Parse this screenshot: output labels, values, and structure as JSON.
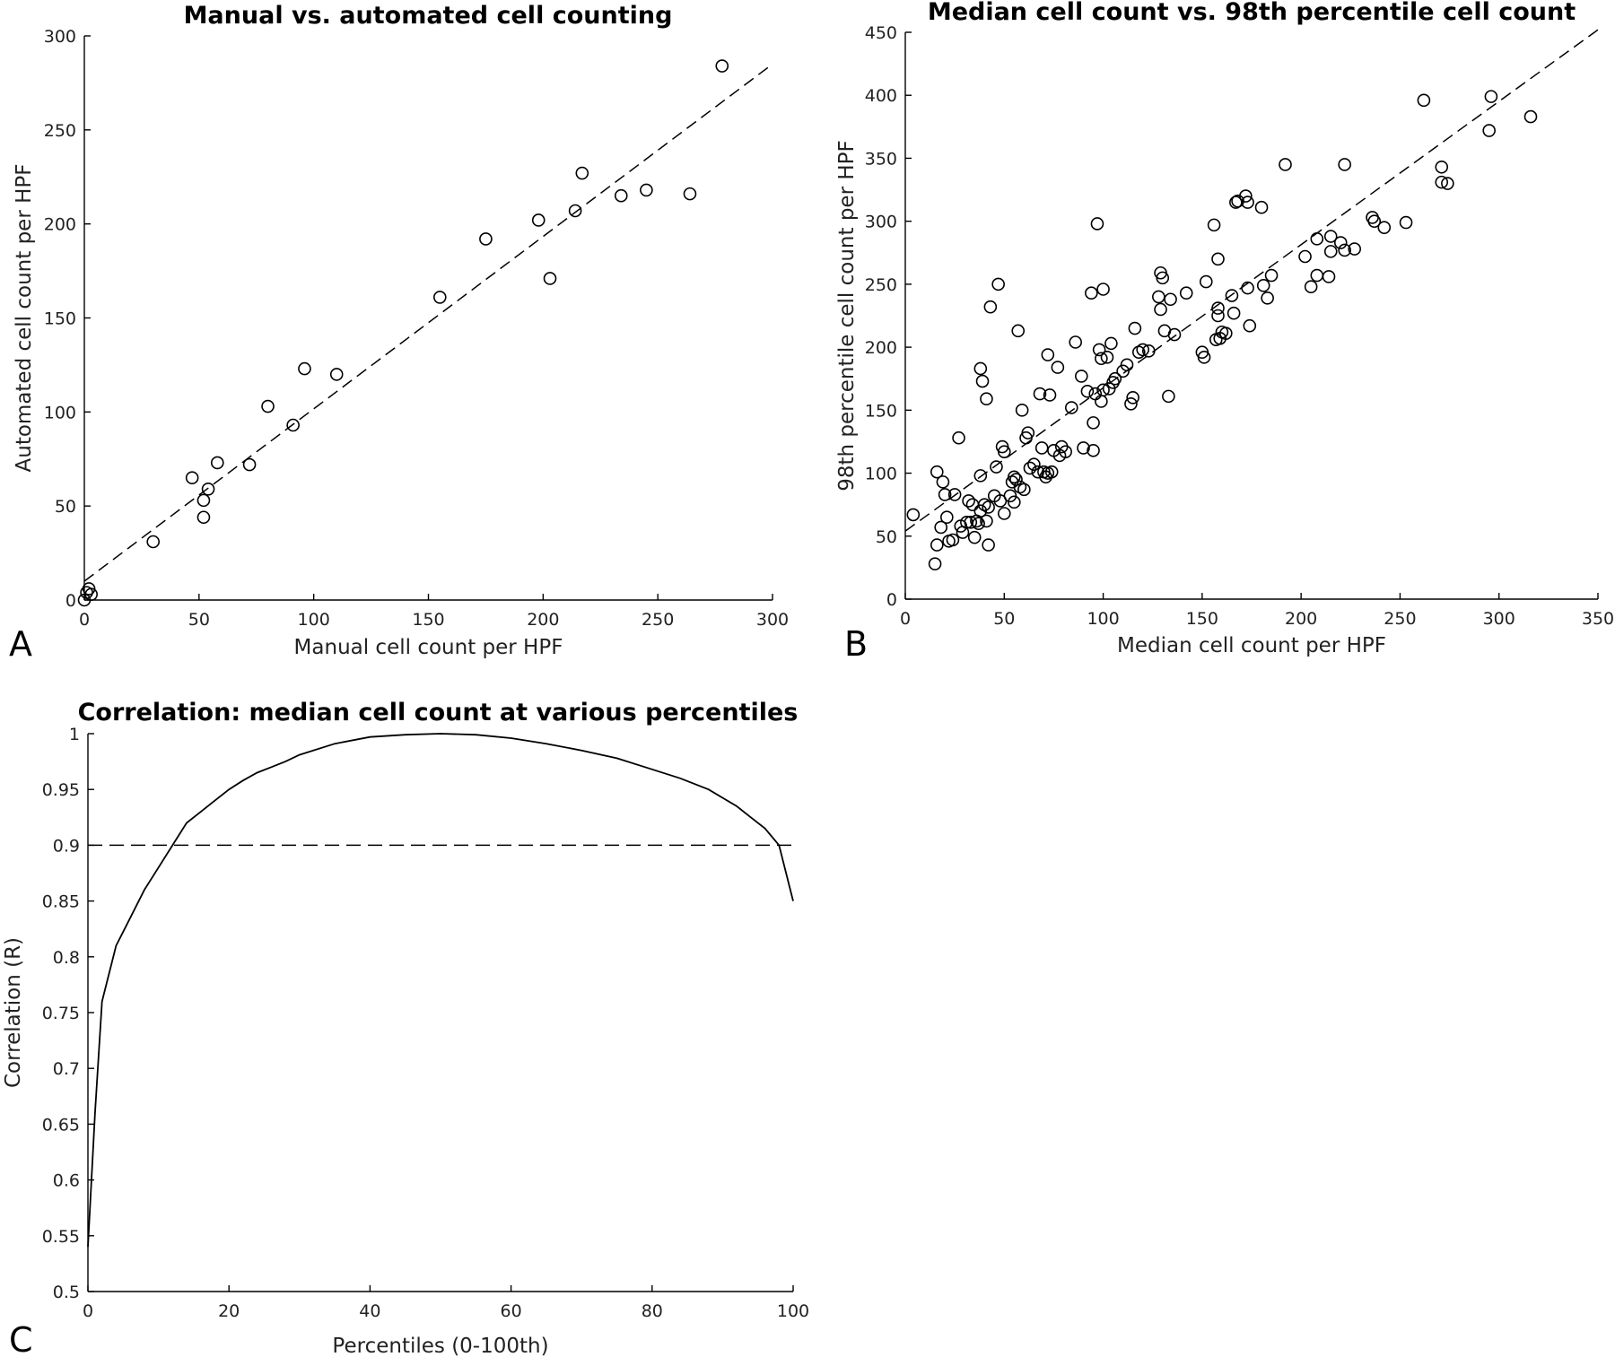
{
  "chart_data": [
    {
      "id": "A",
      "type": "scatter",
      "panel_label": "A",
      "title": "Manual vs. automated cell counting",
      "xlabel": "Manual cell count per HPF",
      "ylabel": "Automated cell count per HPF",
      "xlim": [
        0,
        300
      ],
      "ylim": [
        0,
        300
      ],
      "xticks": [
        0,
        50,
        100,
        150,
        200,
        250,
        300
      ],
      "yticks": [
        0,
        50,
        100,
        150,
        200,
        250,
        300
      ],
      "points": [
        [
          0,
          0
        ],
        [
          1,
          4
        ],
        [
          2,
          6
        ],
        [
          3,
          3
        ],
        [
          30,
          31
        ],
        [
          47,
          65
        ],
        [
          52,
          53
        ],
        [
          52,
          44
        ],
        [
          54,
          59
        ],
        [
          58,
          73
        ],
        [
          72,
          72
        ],
        [
          80,
          103
        ],
        [
          91,
          93
        ],
        [
          96,
          123
        ],
        [
          110,
          120
        ],
        [
          155,
          161
        ],
        [
          175,
          192
        ],
        [
          198,
          202
        ],
        [
          203,
          171
        ],
        [
          214,
          207
        ],
        [
          217,
          227
        ],
        [
          234,
          215
        ],
        [
          245,
          218
        ],
        [
          264,
          216
        ],
        [
          278,
          284
        ]
      ],
      "fit_line": {
        "style": "dashed",
        "from": [
          0,
          10
        ],
        "to": [
          300,
          285
        ]
      }
    },
    {
      "id": "B",
      "type": "scatter",
      "panel_label": "B",
      "title": "Median cell count vs. 98th percentile cell count",
      "xlabel": "Median cell count per HPF",
      "ylabel": "98th percentile cell count per HPF",
      "xlim": [
        0,
        350
      ],
      "ylim": [
        0,
        450
      ],
      "xticks": [
        0,
        50,
        100,
        150,
        200,
        250,
        300,
        350
      ],
      "yticks": [
        0,
        50,
        100,
        150,
        200,
        250,
        300,
        350,
        400,
        450
      ],
      "points": [
        [
          4,
          67
        ],
        [
          15,
          28
        ],
        [
          16,
          43
        ],
        [
          16,
          101
        ],
        [
          18,
          57
        ],
        [
          19,
          93
        ],
        [
          20,
          83
        ],
        [
          21,
          65
        ],
        [
          22,
          46
        ],
        [
          24,
          47
        ],
        [
          25,
          83
        ],
        [
          27,
          128
        ],
        [
          28,
          58
        ],
        [
          29,
          53
        ],
        [
          31,
          61
        ],
        [
          32,
          78
        ],
        [
          33,
          61
        ],
        [
          34,
          75
        ],
        [
          35,
          49
        ],
        [
          36,
          62
        ],
        [
          37,
          60
        ],
        [
          38,
          70
        ],
        [
          38,
          183
        ],
        [
          38,
          98
        ],
        [
          39,
          173
        ],
        [
          40,
          75
        ],
        [
          41,
          62
        ],
        [
          41,
          159
        ],
        [
          42,
          43
        ],
        [
          42,
          73
        ],
        [
          43,
          232
        ],
        [
          45,
          82
        ],
        [
          46,
          105
        ],
        [
          47,
          250
        ],
        [
          48,
          78
        ],
        [
          49,
          121
        ],
        [
          50,
          68
        ],
        [
          50,
          117
        ],
        [
          53,
          82
        ],
        [
          54,
          93
        ],
        [
          55,
          97
        ],
        [
          55,
          77
        ],
        [
          56,
          95
        ],
        [
          57,
          213
        ],
        [
          58,
          89
        ],
        [
          59,
          150
        ],
        [
          60,
          87
        ],
        [
          61,
          128
        ],
        [
          62,
          132
        ],
        [
          63,
          104
        ],
        [
          65,
          107
        ],
        [
          67,
          101
        ],
        [
          68,
          163
        ],
        [
          69,
          120
        ],
        [
          70,
          101
        ],
        [
          71,
          97
        ],
        [
          72,
          100
        ],
        [
          72,
          194
        ],
        [
          73,
          162
        ],
        [
          74,
          101
        ],
        [
          75,
          118
        ],
        [
          77,
          184
        ],
        [
          78,
          114
        ],
        [
          79,
          121
        ],
        [
          81,
          117
        ],
        [
          84,
          152
        ],
        [
          86,
          204
        ],
        [
          89,
          177
        ],
        [
          90,
          120
        ],
        [
          92,
          165
        ],
        [
          94,
          243
        ],
        [
          95,
          140
        ],
        [
          95,
          118
        ],
        [
          96,
          163
        ],
        [
          97,
          298
        ],
        [
          98,
          198
        ],
        [
          99,
          191
        ],
        [
          99,
          157
        ],
        [
          100,
          246
        ],
        [
          100,
          166
        ],
        [
          102,
          192
        ],
        [
          103,
          167
        ],
        [
          104,
          203
        ],
        [
          105,
          172
        ],
        [
          106,
          175
        ],
        [
          110,
          181
        ],
        [
          112,
          186
        ],
        [
          114,
          155
        ],
        [
          115,
          160
        ],
        [
          116,
          215
        ],
        [
          118,
          196
        ],
        [
          120,
          198
        ],
        [
          123,
          197
        ],
        [
          128,
          240
        ],
        [
          129,
          259
        ],
        [
          129,
          230
        ],
        [
          130,
          255
        ],
        [
          131,
          213
        ],
        [
          133,
          161
        ],
        [
          134,
          238
        ],
        [
          136,
          210
        ],
        [
          142,
          243
        ],
        [
          150,
          196
        ],
        [
          151,
          192
        ],
        [
          152,
          252
        ],
        [
          156,
          297
        ],
        [
          157,
          206
        ],
        [
          158,
          270
        ],
        [
          158,
          225
        ],
        [
          158,
          231
        ],
        [
          159,
          207
        ],
        [
          160,
          212
        ],
        [
          162,
          211
        ],
        [
          165,
          241
        ],
        [
          166,
          227
        ],
        [
          167,
          315
        ],
        [
          168,
          316
        ],
        [
          172,
          320
        ],
        [
          173,
          315
        ],
        [
          173,
          247
        ],
        [
          174,
          217
        ],
        [
          180,
          311
        ],
        [
          181,
          249
        ],
        [
          183,
          239
        ],
        [
          185,
          257
        ],
        [
          192,
          345
        ],
        [
          202,
          272
        ],
        [
          205,
          248
        ],
        [
          208,
          257
        ],
        [
          208,
          286
        ],
        [
          214,
          256
        ],
        [
          215,
          288
        ],
        [
          215,
          276
        ],
        [
          220,
          283
        ],
        [
          222,
          277
        ],
        [
          222,
          345
        ],
        [
          227,
          278
        ],
        [
          236,
          303
        ],
        [
          237,
          300
        ],
        [
          242,
          295
        ],
        [
          253,
          299
        ],
        [
          262,
          396
        ],
        [
          271,
          343
        ],
        [
          271,
          331
        ],
        [
          274,
          330
        ],
        [
          295,
          372
        ],
        [
          296,
          399
        ],
        [
          316,
          383
        ]
      ],
      "fit_line": {
        "style": "dashed",
        "from": [
          0,
          54
        ],
        "to": [
          350,
          452
        ]
      }
    },
    {
      "id": "C",
      "type": "line",
      "panel_label": "C",
      "title": "Correlation: median cell count at various percentiles",
      "xlabel": "Percentiles (0-100th)",
      "ylabel": "Correlation (R)",
      "xlim": [
        0,
        100
      ],
      "ylim": [
        0.5,
        1
      ],
      "xticks": [
        0,
        20,
        40,
        60,
        80,
        100
      ],
      "yticks": [
        0.5,
        0.55,
        0.6,
        0.65,
        0.7,
        0.75,
        0.8,
        0.85,
        0.9,
        0.95,
        1
      ],
      "x": [
        0,
        1,
        2,
        4,
        6,
        8,
        10,
        12,
        14,
        16,
        18,
        20,
        22,
        24,
        26,
        28,
        30,
        35,
        40,
        45,
        50,
        55,
        60,
        65,
        70,
        75,
        80,
        84,
        88,
        92,
        94,
        96,
        98,
        100
      ],
      "y": [
        0.54,
        0.66,
        0.76,
        0.81,
        0.835,
        0.86,
        0.88,
        0.9,
        0.92,
        0.93,
        0.94,
        0.95,
        0.958,
        0.965,
        0.97,
        0.975,
        0.981,
        0.991,
        0.997,
        0.999,
        1.0,
        0.999,
        0.996,
        0.991,
        0.985,
        0.978,
        0.968,
        0.96,
        0.95,
        0.935,
        0.925,
        0.915,
        0.9,
        0.85
      ],
      "reference_line": {
        "style": "dashed",
        "y": 0.9
      }
    }
  ]
}
